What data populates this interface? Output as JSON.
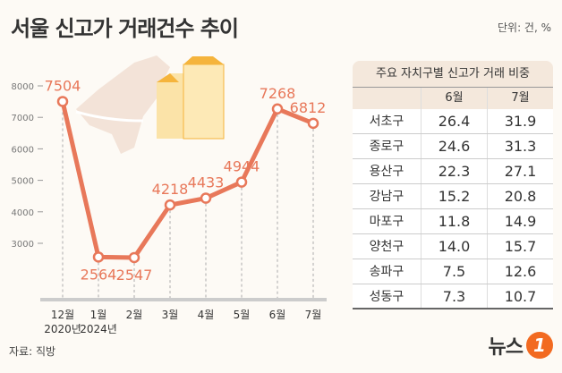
{
  "title": "서울 신고가 거래건수 추이",
  "unit": "단위: 건, %",
  "source": "자료: 직방",
  "logo": {
    "text": "뉴스",
    "badge": "1"
  },
  "chart_data": {
    "type": "line",
    "categories": [
      "12월\n2020년",
      "1월\n2024년",
      "2월",
      "3월",
      "4월",
      "5월",
      "6월",
      "7월"
    ],
    "category_lines": [
      [
        "12월",
        "2020년"
      ],
      [
        "1월",
        "2024년"
      ],
      [
        "2월",
        ""
      ],
      [
        "3월",
        ""
      ],
      [
        "4월",
        ""
      ],
      [
        "5월",
        ""
      ],
      [
        "6월",
        ""
      ],
      [
        "7월",
        ""
      ]
    ],
    "values": [
      7504,
      2564,
      2547,
      4218,
      4433,
      4944,
      7268,
      6812
    ],
    "yticks": [
      3000,
      4000,
      5000,
      6000,
      7000,
      8000
    ],
    "ylim": [
      1200,
      8500
    ],
    "color": "#e8785a",
    "grid": false
  },
  "table": {
    "title": "주요 자치구별 신고가 거래 비중",
    "columns": [
      "",
      "6월",
      "7월"
    ],
    "rows": [
      [
        "서초구",
        "26.4",
        "31.9"
      ],
      [
        "종로구",
        "24.6",
        "31.3"
      ],
      [
        "용산구",
        "22.3",
        "27.1"
      ],
      [
        "강남구",
        "15.2",
        "20.8"
      ],
      [
        "마포구",
        "11.8",
        "14.9"
      ],
      [
        "양천구",
        "14.0",
        "15.7"
      ],
      [
        "송파구",
        "7.5",
        "12.6"
      ],
      [
        "성동구",
        "7.3",
        "10.7"
      ]
    ]
  }
}
